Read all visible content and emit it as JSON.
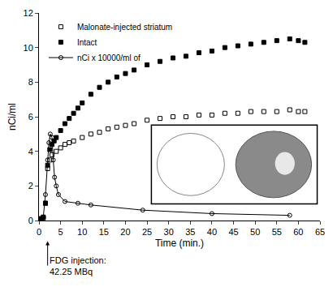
{
  "chart_data": {
    "type": "scatter",
    "x_label": "Time (min.)",
    "y_label": "nCi/ml",
    "xlim": [
      0,
      65
    ],
    "xticks": [
      0,
      5,
      10,
      15,
      20,
      25,
      30,
      35,
      40,
      45,
      50,
      55,
      60,
      65
    ],
    "ylim": [
      0,
      12
    ],
    "yticks": [
      0,
      2,
      4,
      6,
      8,
      10,
      12
    ],
    "grid": false,
    "legend": "top left",
    "annotations": [
      {
        "text": "FDG injection:\n42.25 MBq",
        "x": 2
      }
    ],
    "series": [
      {
        "name": "Malonate-injected striatum",
        "color": "#000000",
        "marker": "square-open",
        "line_style": "none",
        "x": [
          0,
          0.5,
          1,
          1.5,
          2,
          2.5,
          3,
          4,
          5,
          6,
          7,
          8,
          10,
          12,
          14,
          16,
          18,
          20,
          22,
          25,
          28,
          31,
          34,
          37,
          40,
          43,
          46,
          49,
          52,
          55,
          58,
          60,
          61.5
        ],
        "values": [
          0.1,
          0.1,
          0.15,
          1.0,
          3.0,
          3.5,
          3.8,
          4.0,
          4.2,
          4.4,
          4.5,
          4.6,
          4.8,
          5.0,
          5.1,
          5.3,
          5.4,
          5.5,
          5.6,
          5.8,
          5.9,
          6.0,
          6.0,
          6.1,
          6.1,
          6.2,
          6.2,
          6.3,
          6.3,
          6.3,
          6.4,
          6.3,
          6.3
        ]
      },
      {
        "name": "Intact",
        "color": "#000000",
        "marker": "square",
        "line_style": "none",
        "x": [
          0,
          0.5,
          1,
          1.5,
          2,
          2.5,
          3,
          3.5,
          4,
          5,
          6,
          7,
          8,
          9,
          10,
          12,
          14,
          16,
          18,
          20,
          22,
          25,
          28,
          31,
          34,
          37,
          40,
          43,
          46,
          49,
          52,
          55,
          58,
          60,
          61.5
        ],
        "values": [
          0.1,
          0.1,
          0.2,
          1.0,
          3.2,
          4.1,
          4.4,
          4.6,
          4.8,
          5.2,
          5.6,
          5.9,
          6.2,
          6.5,
          6.8,
          7.3,
          7.7,
          8.0,
          8.3,
          8.5,
          8.7,
          9.0,
          9.2,
          9.4,
          9.5,
          9.7,
          9.8,
          10.0,
          10.1,
          10.2,
          10.3,
          10.4,
          10.5,
          10.4,
          10.3
        ]
      },
      {
        "name": "nCi x 10000/ml of",
        "color": "#000000",
        "marker": "circle-open",
        "line_style": "solid",
        "x": [
          0,
          1,
          1.5,
          2,
          2.3,
          2.6,
          3,
          3.3,
          3.6,
          4,
          4.5,
          6,
          9,
          12,
          24,
          40,
          58
        ],
        "values": [
          0.1,
          0.2,
          1.5,
          3.5,
          4.5,
          5.0,
          4.8,
          3.5,
          2.5,
          2.0,
          1.5,
          1.1,
          1.0,
          0.9,
          0.6,
          0.4,
          0.3
        ]
      }
    ]
  }
}
